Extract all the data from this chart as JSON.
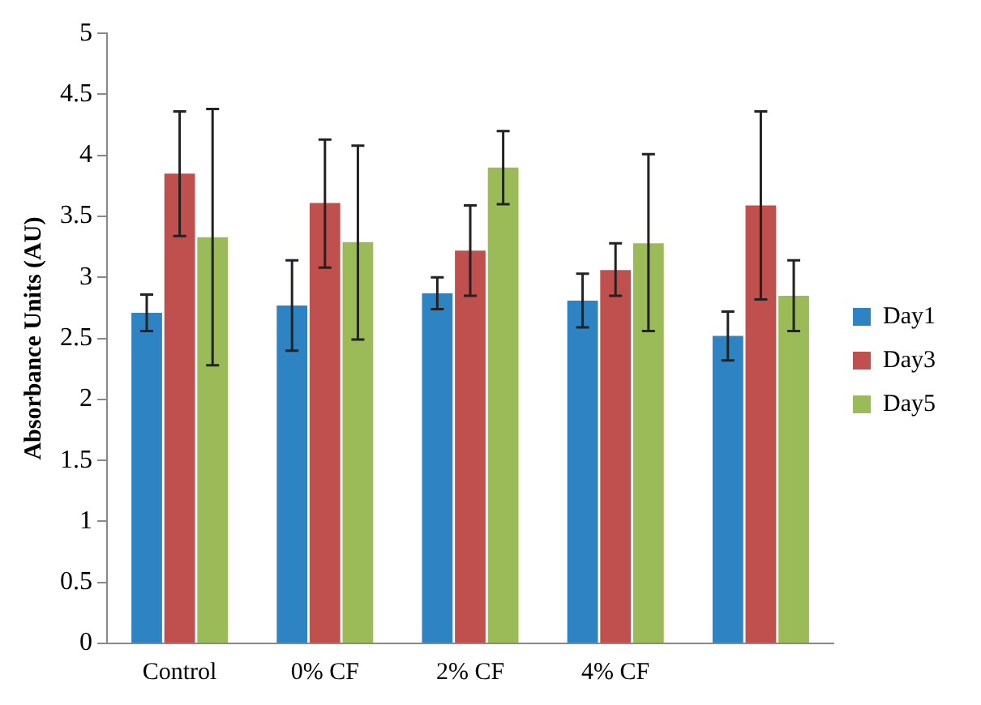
{
  "chart_data": {
    "type": "bar",
    "ylabel": "Absorbance Units (AU)",
    "categories": [
      "Control",
      "0% CF",
      "2% CF",
      "4% CF",
      null
    ],
    "series": [
      {
        "name": "Day1",
        "color": "#2e83c3",
        "values": [
          2.71,
          2.77,
          2.87,
          2.81,
          2.52
        ],
        "errors": [
          [
            2.56,
            2.86
          ],
          [
            2.4,
            3.14
          ],
          [
            2.74,
            3.0
          ],
          [
            2.59,
            3.03
          ],
          [
            2.32,
            2.72
          ]
        ]
      },
      {
        "name": "Day3",
        "color": "#c0504d",
        "values": [
          3.85,
          3.61,
          3.22,
          3.06,
          3.59
        ],
        "errors": [
          [
            3.34,
            4.36
          ],
          [
            3.08,
            4.13
          ],
          [
            2.85,
            3.59
          ],
          [
            2.85,
            3.28
          ],
          [
            2.82,
            4.36
          ]
        ]
      },
      {
        "name": "Day5",
        "color": "#9bbb59",
        "values": [
          3.33,
          3.29,
          3.9,
          3.28,
          2.85
        ],
        "errors": [
          [
            2.28,
            4.38
          ],
          [
            2.49,
            4.08
          ],
          [
            3.6,
            4.2
          ],
          [
            2.56,
            4.01
          ],
          [
            2.56,
            3.14
          ]
        ]
      }
    ],
    "ylim": [
      0,
      5
    ],
    "yticks": [
      0,
      0.5,
      1,
      1.5,
      2,
      2.5,
      3,
      3.5,
      4,
      4.5,
      5
    ],
    "grid": false,
    "legend": "right"
  }
}
